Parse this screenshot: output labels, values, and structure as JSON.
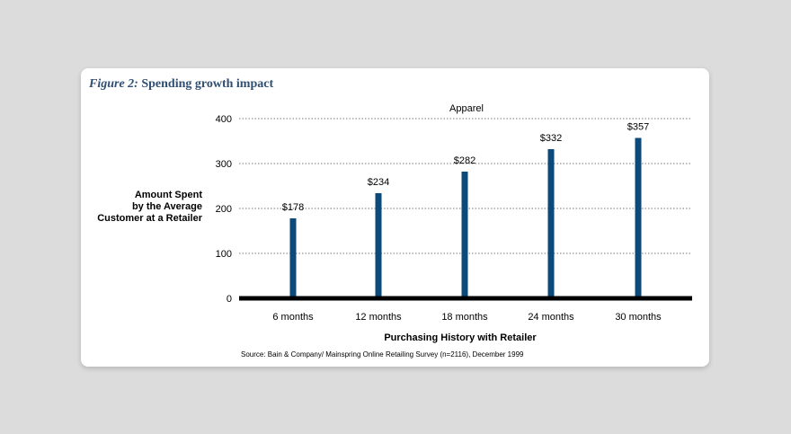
{
  "figure": {
    "number_label": "Figure 2:",
    "title": "Spending growth impact",
    "source": "Source: Bain & Company/ Mainspring Online Retailing Survey (n=2116), December 1999"
  },
  "chart_data": {
    "type": "bar",
    "title": "Apparel",
    "categories": [
      "6 months",
      "12 months",
      "18 months",
      "24 months",
      "30 months"
    ],
    "values": [
      178,
      234,
      282,
      332,
      357
    ],
    "value_labels": [
      "$178",
      "$234",
      "$282",
      "$332",
      "$357"
    ],
    "xlabel": "Purchasing History with Retailer",
    "ylabel_lines": [
      "Amount Spent",
      "by the Average",
      "Customer at a Retailer"
    ],
    "ylim": [
      0,
      400
    ],
    "yticks": [
      0,
      100,
      200,
      300,
      400
    ],
    "grid": true,
    "bar_color": "#0b4a7a"
  }
}
